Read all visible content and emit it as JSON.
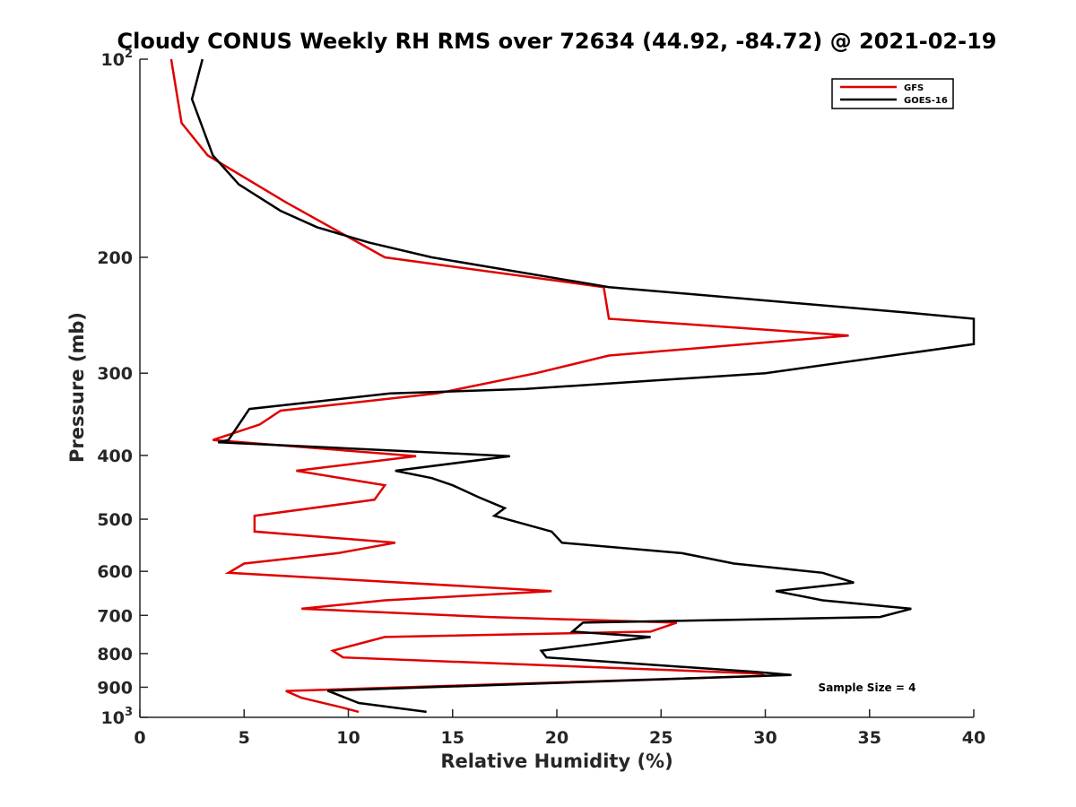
{
  "chart_data": {
    "type": "line",
    "title": "Cloudy CONUS Weekly RH RMS over 72634 (44.92, -84.72) @ 2021-02-19",
    "xlabel": "Relative Humidity (%)",
    "ylabel": "Pressure (mb)",
    "xlim": [
      0,
      40
    ],
    "ylim": [
      100,
      1000
    ],
    "y_scale": "log",
    "y_reversed": true,
    "x_ticks": [
      0,
      5,
      10,
      15,
      20,
      25,
      30,
      35,
      40
    ],
    "x_tick_labels": [
      "0",
      "5",
      "10",
      "15",
      "20",
      "25",
      "30",
      "35",
      "40"
    ],
    "y_ticks": [
      {
        "value": 100,
        "base": "10",
        "exp": "2"
      },
      {
        "value": 200,
        "base": "200",
        "exp": ""
      },
      {
        "value": 300,
        "base": "300",
        "exp": ""
      },
      {
        "value": 400,
        "base": "400",
        "exp": ""
      },
      {
        "value": 500,
        "base": "500",
        "exp": ""
      },
      {
        "value": 600,
        "base": "600",
        "exp": ""
      },
      {
        "value": 700,
        "base": "700",
        "exp": ""
      },
      {
        "value": 800,
        "base": "800",
        "exp": ""
      },
      {
        "value": 900,
        "base": "900",
        "exp": ""
      },
      {
        "value": 1000,
        "base": "10",
        "exp": "3"
      }
    ],
    "grid": false,
    "legend_position": "top-right",
    "annotation": "Sample Size = 4",
    "series": [
      {
        "name": "GFS",
        "color": "#e00000",
        "points": [
          [
            1.5,
            100
          ],
          [
            2.0,
            125
          ],
          [
            3.25,
            140
          ],
          [
            7.0,
            165
          ],
          [
            11.75,
            200
          ],
          [
            22.25,
            222
          ],
          [
            22.5,
            248
          ],
          [
            34.0,
            263
          ],
          [
            22.5,
            282
          ],
          [
            19.0,
            300
          ],
          [
            14.25,
            322
          ],
          [
            6.75,
            342
          ],
          [
            5.75,
            359
          ],
          [
            3.5,
            379
          ],
          [
            13.25,
            401
          ],
          [
            7.5,
            422
          ],
          [
            11.75,
            444
          ],
          [
            11.25,
            467
          ],
          [
            5.5,
            494
          ],
          [
            5.5,
            522
          ],
          [
            12.25,
            543
          ],
          [
            9.5,
            563
          ],
          [
            5.0,
            584
          ],
          [
            4.25,
            603
          ],
          [
            19.75,
            643
          ],
          [
            11.75,
            664
          ],
          [
            7.75,
            684
          ],
          [
            16.75,
            704
          ],
          [
            25.75,
            718
          ],
          [
            24.5,
            741
          ],
          [
            11.75,
            755
          ],
          [
            9.25,
            792
          ],
          [
            9.75,
            811
          ],
          [
            29.75,
            858
          ],
          [
            30.0,
            865
          ],
          [
            7.0,
            912
          ],
          [
            7.75,
            934
          ],
          [
            9.75,
            967
          ],
          [
            10.5,
            981
          ]
        ]
      },
      {
        "name": "GOES-16",
        "color": "#000000",
        "points": [
          [
            3.0,
            100
          ],
          [
            2.5,
            115
          ],
          [
            3.5,
            140
          ],
          [
            4.75,
            155
          ],
          [
            6.75,
            170
          ],
          [
            8.5,
            180
          ],
          [
            11.0,
            190
          ],
          [
            14.0,
            200
          ],
          [
            22.5,
            222
          ],
          [
            37.0,
            243
          ],
          [
            40.0,
            248
          ],
          [
            40.0,
            271
          ],
          [
            30.0,
            300
          ],
          [
            18.5,
            317
          ],
          [
            12.0,
            322
          ],
          [
            5.25,
            340
          ],
          [
            4.25,
            379
          ],
          [
            3.75,
            382
          ],
          [
            17.75,
            401
          ],
          [
            12.25,
            422
          ],
          [
            14.0,
            433
          ],
          [
            15.0,
            444
          ],
          [
            16.25,
            463
          ],
          [
            17.5,
            481
          ],
          [
            17.0,
            494
          ],
          [
            19.75,
            522
          ],
          [
            20.25,
            543
          ],
          [
            26.0,
            563
          ],
          [
            28.5,
            584
          ],
          [
            32.75,
            603
          ],
          [
            34.25,
            624
          ],
          [
            30.5,
            643
          ],
          [
            32.75,
            664
          ],
          [
            37.0,
            684
          ],
          [
            35.5,
            704
          ],
          [
            21.25,
            718
          ],
          [
            20.75,
            741
          ],
          [
            24.5,
            755
          ],
          [
            19.25,
            792
          ],
          [
            19.5,
            811
          ],
          [
            29.5,
            853
          ],
          [
            31.25,
            862
          ],
          [
            9.0,
            911
          ],
          [
            10.5,
            951
          ],
          [
            13.75,
            981
          ]
        ]
      }
    ]
  }
}
